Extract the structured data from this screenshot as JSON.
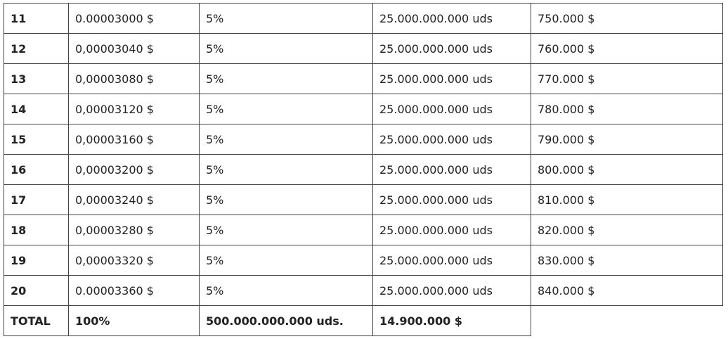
{
  "rows": [
    {
      "num": "11",
      "price": "0.00003000 $",
      "percent": "5%",
      "units": "25.000.000.000 uds",
      "amount": "750.000 $"
    },
    {
      "num": "12",
      "price": "0,00003040 $",
      "percent": "5%",
      "units": "25.000.000.000 uds",
      "amount": "760.000 $"
    },
    {
      "num": "13",
      "price": "0,00003080 $",
      "percent": "5%",
      "units": "25.000.000.000 uds",
      "amount": "770.000 $"
    },
    {
      "num": "14",
      "price": "0,00003120 $",
      "percent": "5%",
      "units": "25.000.000.000 uds",
      "amount": "780.000 $"
    },
    {
      "num": "15",
      "price": "0,00003160 $",
      "percent": "5%",
      "units": "25.000.000.000 uds",
      "amount": "790.000 $"
    },
    {
      "num": "16",
      "price": "0,00003200 $",
      "percent": "5%",
      "units": "25.000.000.000 uds",
      "amount": "800.000 $"
    },
    {
      "num": "17",
      "price": "0,00003240 $",
      "percent": "5%",
      "units": "25.000.000.000 uds",
      "amount": "810.000 $"
    },
    {
      "num": "18",
      "price": "0,00003280 $",
      "percent": "5%",
      "units": "25.000.000.000 uds",
      "amount": "820.000 $"
    },
    {
      "num": "19",
      "price": "0,00003320 $",
      "percent": "5%",
      "units": "25.000.000.000 uds",
      "amount": "830.000 $"
    },
    {
      "num": "20",
      "price": "0.00003360 $",
      "percent": "5%",
      "units": "25.000.000.000 uds",
      "amount": "840.000 $"
    }
  ],
  "total": {
    "label": "TOTAL",
    "percent": "100%",
    "units": "500.000.000.000 uds.",
    "amount": "14.900.000 $"
  }
}
